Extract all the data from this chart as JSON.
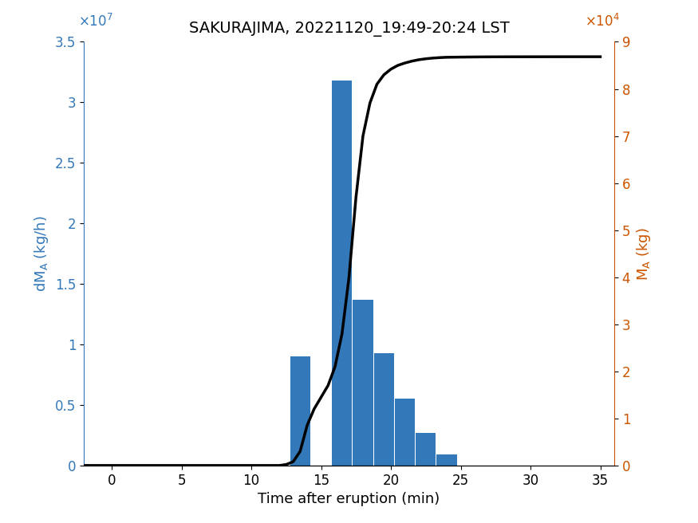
{
  "title": "SAKURAJIMA, 20221120_19:49-20:24 LST",
  "xlabel": "Time after eruption (min)",
  "ylabel_left": "dM_A (kg/h)",
  "ylabel_right": "M_A (kg)",
  "bar_centers": [
    13.5,
    16.5,
    18.0,
    19.5,
    21.0,
    22.5,
    24.0,
    25.5
  ],
  "bar_heights": [
    9000000.0,
    31800000.0,
    13700000.0,
    9300000.0,
    5500000.0,
    2700000.0,
    900000.0,
    0.0
  ],
  "bar_color": "#3378b8",
  "bar_width": 1.45,
  "xlim": [
    -2,
    36
  ],
  "ylim_left": [
    0,
    35000000.0
  ],
  "ylim_right": [
    0,
    90000.0
  ],
  "xticks": [
    0,
    5,
    10,
    15,
    20,
    25,
    30,
    35
  ],
  "yticks_left": [
    0,
    5000000,
    10000000,
    15000000,
    20000000,
    25000000,
    30000000,
    35000000
  ],
  "ytick_labels_left": [
    "0",
    "0.5",
    "1",
    "1.5",
    "2",
    "2.5",
    "3",
    "3.5"
  ],
  "yticks_right": [
    0,
    10000,
    20000,
    30000,
    40000,
    50000,
    60000,
    70000,
    80000,
    90000
  ],
  "ytick_labels_right": [
    "0",
    "1",
    "2",
    "3",
    "4",
    "5",
    "6",
    "7",
    "8",
    "9"
  ],
  "left_color": "#3378b8",
  "right_color": "#cc5500",
  "title_fontsize": 14,
  "label_fontsize": 13,
  "tick_fontsize": 12,
  "cumulative_x": [
    -2,
    0,
    5,
    10,
    11,
    12,
    12.5,
    13,
    13.5,
    14,
    14.5,
    15,
    15.5,
    16,
    16.5,
    17,
    17.5,
    18,
    18.5,
    19,
    19.5,
    20,
    20.5,
    21,
    21.5,
    22,
    22.5,
    23,
    23.5,
    24,
    25,
    26,
    27,
    28,
    29,
    30,
    32,
    34,
    35
  ],
  "cumulative_y": [
    0,
    0,
    0,
    0,
    0,
    0,
    200,
    800,
    3000,
    8500,
    12000,
    14500,
    17000,
    21000,
    28000,
    40000,
    57000,
    70000,
    77000,
    81000,
    83000,
    84200,
    85000,
    85500,
    85900,
    86200,
    86400,
    86550,
    86650,
    86720,
    86760,
    86790,
    86810,
    86820,
    86825,
    86830,
    86835,
    86838,
    86838
  ]
}
